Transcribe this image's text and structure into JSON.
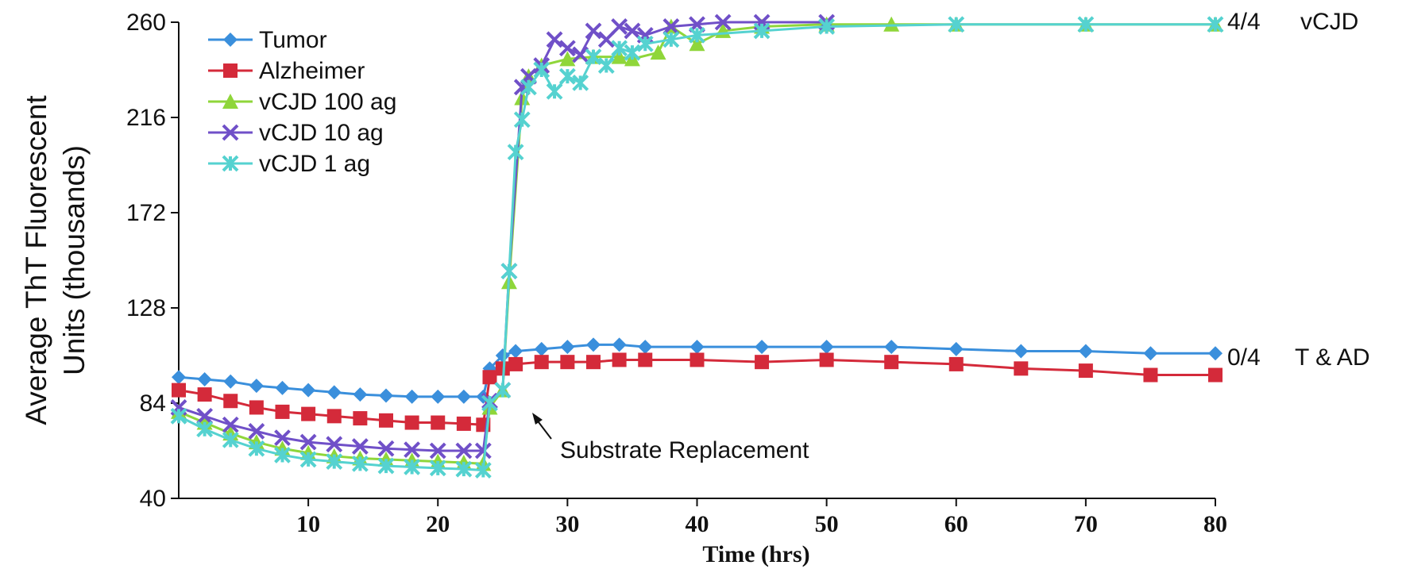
{
  "chart_data": {
    "type": "line",
    "title": "",
    "xlabel": "Time (hrs)",
    "ylabel": [
      "Average ThT Fluorescent",
      "Units (thousands)"
    ],
    "xlim": [
      0,
      80
    ],
    "ylim": [
      40,
      260
    ],
    "x_ticks": [
      10,
      20,
      30,
      40,
      50,
      60,
      70,
      80
    ],
    "y_ticks": [
      40,
      84,
      128,
      172,
      216,
      260
    ],
    "grid": false,
    "legend_position": "top-left",
    "series": [
      {
        "name": "Tumor",
        "color": "#3a8fdc",
        "marker": "diamond",
        "x": [
          0,
          2,
          4,
          6,
          8,
          10,
          12,
          14,
          16,
          18,
          20,
          22,
          23.5,
          24,
          25,
          26,
          28,
          30,
          32,
          34,
          36,
          40,
          45,
          50,
          55,
          60,
          65,
          70,
          75,
          80
        ],
        "y": [
          96,
          95,
          94,
          92,
          91,
          90,
          89,
          88,
          87.5,
          87,
          87,
          87,
          87,
          100,
          106,
          108,
          109,
          110,
          111,
          111,
          110,
          110,
          110,
          110,
          110,
          109,
          108,
          108,
          107,
          107
        ]
      },
      {
        "name": "Alzheimer",
        "color": "#d42a3a",
        "marker": "square",
        "x": [
          0,
          2,
          4,
          6,
          8,
          10,
          12,
          14,
          16,
          18,
          20,
          22,
          23.5,
          24,
          25,
          26,
          28,
          30,
          32,
          34,
          36,
          40,
          45,
          50,
          55,
          60,
          65,
          70,
          75,
          80
        ],
        "y": [
          90,
          88,
          85,
          82,
          80,
          79,
          78,
          77,
          76,
          75,
          75,
          74.5,
          74,
          96,
          100,
          102,
          103,
          103,
          103,
          104,
          104,
          104,
          103,
          104,
          103,
          102,
          100,
          99,
          97,
          97
        ]
      },
      {
        "name": "vCJD 100 ag",
        "color": "#8fd63a",
        "marker": "triangle",
        "x": [
          0,
          2,
          4,
          6,
          8,
          10,
          12,
          14,
          16,
          18,
          20,
          22,
          23.5,
          24,
          25,
          25.5,
          26.5,
          27,
          28,
          30,
          32,
          34,
          35,
          37,
          38,
          40,
          42,
          45,
          50,
          55,
          60,
          70,
          80
        ],
        "y": [
          80,
          75,
          70,
          66,
          63,
          61,
          59.5,
          58.5,
          58,
          57.5,
          57,
          56.5,
          56,
          82,
          90,
          140,
          225,
          235,
          240,
          243,
          244,
          244,
          243,
          246,
          258,
          250,
          256,
          258,
          259,
          259,
          259,
          259,
          259
        ]
      },
      {
        "name": "vCJD 10 ag",
        "color": "#7050c8",
        "marker": "x",
        "x": [
          0,
          2,
          4,
          6,
          8,
          10,
          12,
          14,
          16,
          18,
          20,
          22,
          23.5,
          24,
          25,
          25.5,
          26.5,
          27,
          28,
          29,
          30,
          31,
          32,
          33,
          34,
          35,
          36,
          38,
          40,
          42,
          45,
          50
        ],
        "y": [
          82,
          78,
          74,
          71,
          68,
          66,
          65,
          64,
          63,
          62.5,
          62,
          62,
          62,
          85,
          90,
          145,
          230,
          235,
          240,
          252,
          248,
          245,
          256,
          252,
          258,
          256,
          254,
          258,
          259,
          260,
          260,
          260
        ]
      },
      {
        "name": "vCJD 1 ag",
        "color": "#55d2d0",
        "marker": "asterisk",
        "x": [
          0,
          2,
          4,
          6,
          8,
          10,
          12,
          14,
          16,
          18,
          20,
          22,
          23.5,
          24,
          25,
          25.5,
          26,
          26.5,
          27,
          28,
          29,
          30,
          31,
          32,
          33,
          34,
          35,
          36,
          38,
          40,
          45,
          50,
          60,
          70,
          80
        ],
        "y": [
          78,
          72,
          67,
          63,
          60,
          58,
          57,
          56,
          55,
          54.5,
          54,
          53.5,
          53,
          84,
          90,
          145,
          200,
          215,
          230,
          238,
          228,
          235,
          232,
          244,
          240,
          248,
          246,
          250,
          252,
          254,
          256,
          258,
          259,
          259,
          259
        ]
      }
    ],
    "annotations": [
      {
        "text": "Substrate Replacement"
      },
      {
        "text": "4/4"
      },
      {
        "text": "vCJD"
      },
      {
        "text": "0/4"
      },
      {
        "text": "T & AD"
      }
    ]
  }
}
